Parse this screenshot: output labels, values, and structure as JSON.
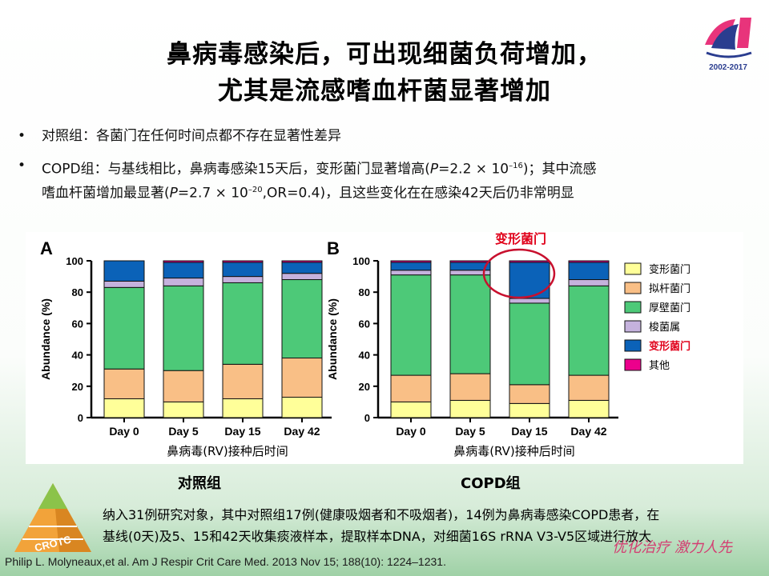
{
  "title": {
    "line1": "鼻病毒感染后，可出现细菌负荷增加，",
    "line2": "尤其是流感嗜血杆菌显著增加"
  },
  "logo": {
    "text": "CROTC",
    "years": "2002-2017"
  },
  "bullets": [
    {
      "marker": "•",
      "text": "对照组：各菌门在任何时间点都不存在显著性差异"
    },
    {
      "marker": "•",
      "line1_a": "COPD组：与基线相比，鼻病毒感染15天后，变形菌门显著增高(",
      "p1_italic": "P",
      "p1_value": "=2.2 × 10",
      "p1_exp": "–16",
      "line1_b": ")；其中流感",
      "line2_a": "嗜血杆菌增加最显著(",
      "p2_italic": "P",
      "p2_value": "=2.7 × 10",
      "p2_exp": "–20",
      "line2_b": ",OR=0.4)，且这些变化在在感染42天后仍非常明显"
    }
  ],
  "highlight_label": "变形菌门",
  "legend": [
    {
      "label": "变形菌门",
      "color": "#ffff99"
    },
    {
      "label": "拟杆菌门",
      "color": "#f9bf86"
    },
    {
      "label": "厚壁菌门",
      "color": "#4dc978"
    },
    {
      "label": "梭菌属",
      "color": "#c5b2dd"
    },
    {
      "label": "变形菌门",
      "color": "#0b62b8"
    },
    {
      "label": "其他",
      "color": "#ec008c"
    }
  ],
  "chart_data": [
    {
      "type": "bar",
      "panel": "A",
      "stacked": true,
      "categories": [
        "Day 0",
        "Day 5",
        "Day 15",
        "Day 42"
      ],
      "ylabel": "Abundance (%)",
      "xlabel": "鼻病毒(RV)接种后时间",
      "ylim": [
        0,
        100
      ],
      "yticks": [
        0,
        20,
        40,
        60,
        80,
        100
      ],
      "series": [
        {
          "name": "变形菌门",
          "values": [
            12,
            10,
            12,
            13
          ]
        },
        {
          "name": "拟杆菌门",
          "values": [
            19,
            20,
            22,
            25
          ]
        },
        {
          "name": "厚壁菌门",
          "values": [
            52,
            54,
            52,
            50
          ]
        },
        {
          "name": "梭菌属",
          "values": [
            4,
            5,
            4,
            4
          ]
        },
        {
          "name": "变形菌门",
          "values": [
            13,
            10,
            9,
            7
          ]
        },
        {
          "name": "其他",
          "values": [
            0,
            1,
            1,
            1
          ]
        }
      ]
    },
    {
      "type": "bar",
      "panel": "B",
      "stacked": true,
      "categories": [
        "Day 0",
        "Day 5",
        "Day 15",
        "Day 42"
      ],
      "ylabel": "Abundance (%)",
      "xlabel": "鼻病毒(RV)接种后时间",
      "ylim": [
        0,
        100
      ],
      "yticks": [
        0,
        20,
        40,
        60,
        80,
        100
      ],
      "series": [
        {
          "name": "变形菌门",
          "values": [
            10,
            11,
            9,
            11
          ]
        },
        {
          "name": "拟杆菌门",
          "values": [
            17,
            17,
            12,
            16
          ]
        },
        {
          "name": "厚壁菌门",
          "values": [
            64,
            63,
            52,
            57
          ]
        },
        {
          "name": "梭菌属",
          "values": [
            3,
            3,
            3,
            4
          ]
        },
        {
          "name": "变形菌门",
          "values": [
            5,
            5,
            23,
            11
          ]
        },
        {
          "name": "其他",
          "values": [
            1,
            1,
            1,
            1
          ]
        }
      ]
    }
  ],
  "captions": {
    "control": "对照组",
    "copd": "COPD组"
  },
  "note": {
    "line1": "纳入31例研究对象，其中对照组17例(健康吸烟者和不吸烟者)，14例为鼻病毒感染COPD患者，在",
    "line2": "基线(0天)及5、15和42天收集痰液样本，提取样本DNA，对细菌16S rRNA V3-V5区域进行放大"
  },
  "citation": "Philip L. Molyneaux,et al. Am J Respir Crit Care Med. 2013 Nov 15; 188(10): 1224–1231.",
  "slogan": "优化治疗 激力人先",
  "pyramid_label": "CROTC"
}
